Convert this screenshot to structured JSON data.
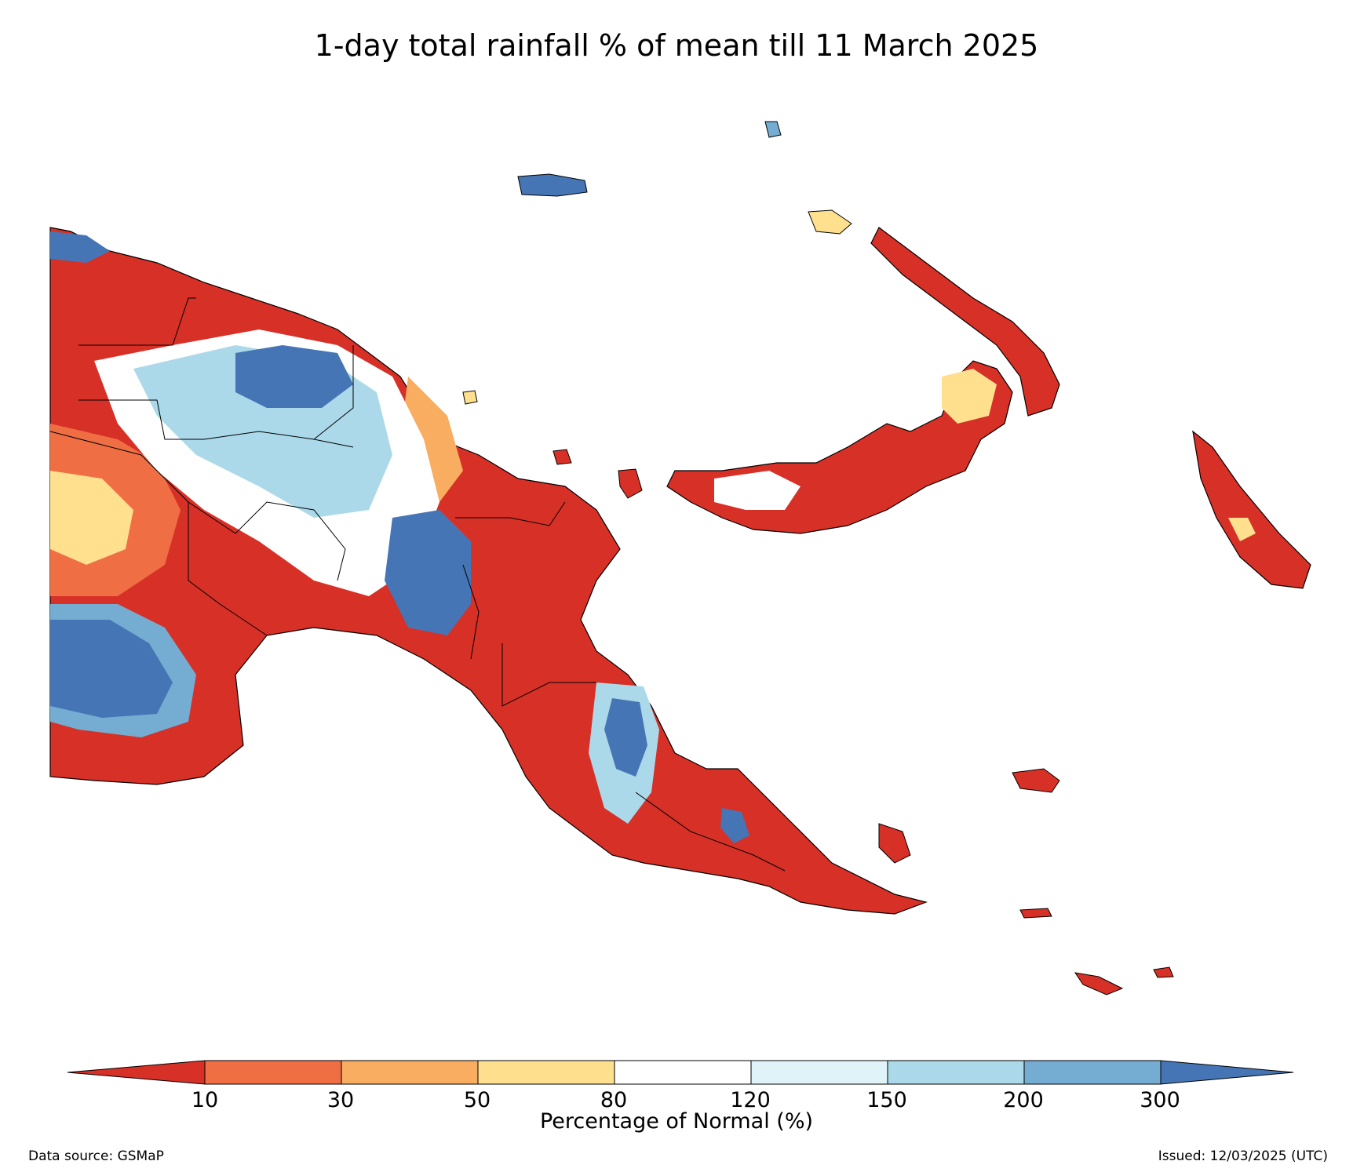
{
  "title": "1-day total rainfall % of mean till 11 March 2025",
  "colorbar": {
    "label": "Percentage of Normal (%)",
    "ticks": [
      "10",
      "30",
      "50",
      "80",
      "120",
      "150",
      "200",
      "300"
    ],
    "colors": {
      "below_10": "#d73027",
      "10_30": "#f06e44",
      "30_50": "#f9ad60",
      "50_80": "#fee08f",
      "80_120": "#ffffff",
      "120_150": "#e0f3f8",
      "150_200": "#abd9e9",
      "200_300": "#74add1",
      "above_300": "#4575b4"
    }
  },
  "footer": {
    "source": "Data source: GSMaP",
    "issued": "Issued: 12/03/2025 (UTC)"
  }
}
